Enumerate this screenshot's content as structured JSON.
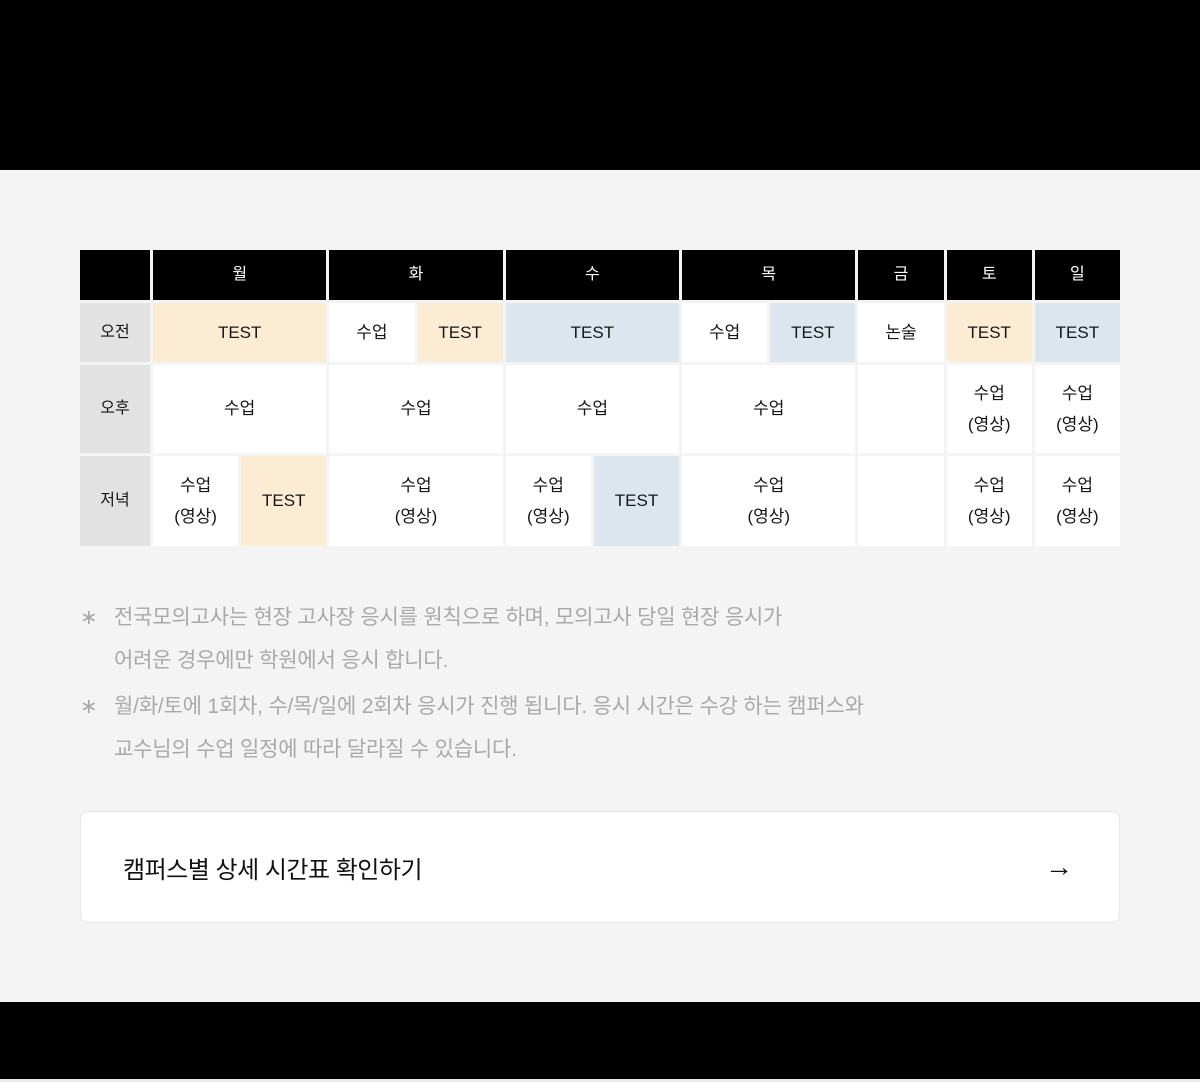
{
  "timetable": {
    "day_headers": [
      "월",
      "화",
      "수",
      "목",
      "금",
      "토",
      "일"
    ],
    "colors": {
      "round1_test_bg": "#fcecd4",
      "round2_test_bg": "#dce6ef",
      "day_header_bg": "#000000",
      "time_label_bg": "#e2e2e2"
    },
    "rows": {
      "morning": {
        "label": "오전",
        "cells": {
          "mon": "TEST",
          "tue_1": "수업",
          "tue_2": "TEST",
          "wed": "TEST",
          "thu_1": "수업",
          "thu_2": "TEST",
          "fri": "논술",
          "sat": "TEST",
          "sun": "TEST"
        }
      },
      "afternoon": {
        "label": "오후",
        "cells": {
          "mon": "수업",
          "tue": "수업",
          "wed": "수업",
          "thu": "수업",
          "fri": "",
          "sat": "수업\n(영상)",
          "sun": "수업\n(영상)"
        }
      },
      "evening": {
        "label": "저녁",
        "cells": {
          "mon_1": "수업\n(영상)",
          "mon_2": "TEST",
          "tue": "수업\n(영상)",
          "wed_1": "수업\n(영상)",
          "wed_2": "TEST",
          "thu": "수업\n(영상)",
          "fri": "",
          "sat": "수업\n(영상)",
          "sun": "수업\n(영상)"
        }
      }
    }
  },
  "notes": [
    {
      "marker": "∗",
      "text": "전국모의고사는 현장 고사장 응시를 원칙으로 하며, 모의고사 당일 현장 응시가\n어려운 경우에만 학원에서 응시 합니다."
    },
    {
      "marker": "∗",
      "text": "월/화/토에 1회차, 수/목/일에 2회차 응시가 진행 됩니다. 응시 시간은 수강 하는 캠퍼스와\n교수님의 수업 일정에 따라 달라질 수 있습니다."
    }
  ],
  "cta": {
    "label": "캠퍼스별 상세 시간표 확인하기",
    "arrow": "→"
  }
}
